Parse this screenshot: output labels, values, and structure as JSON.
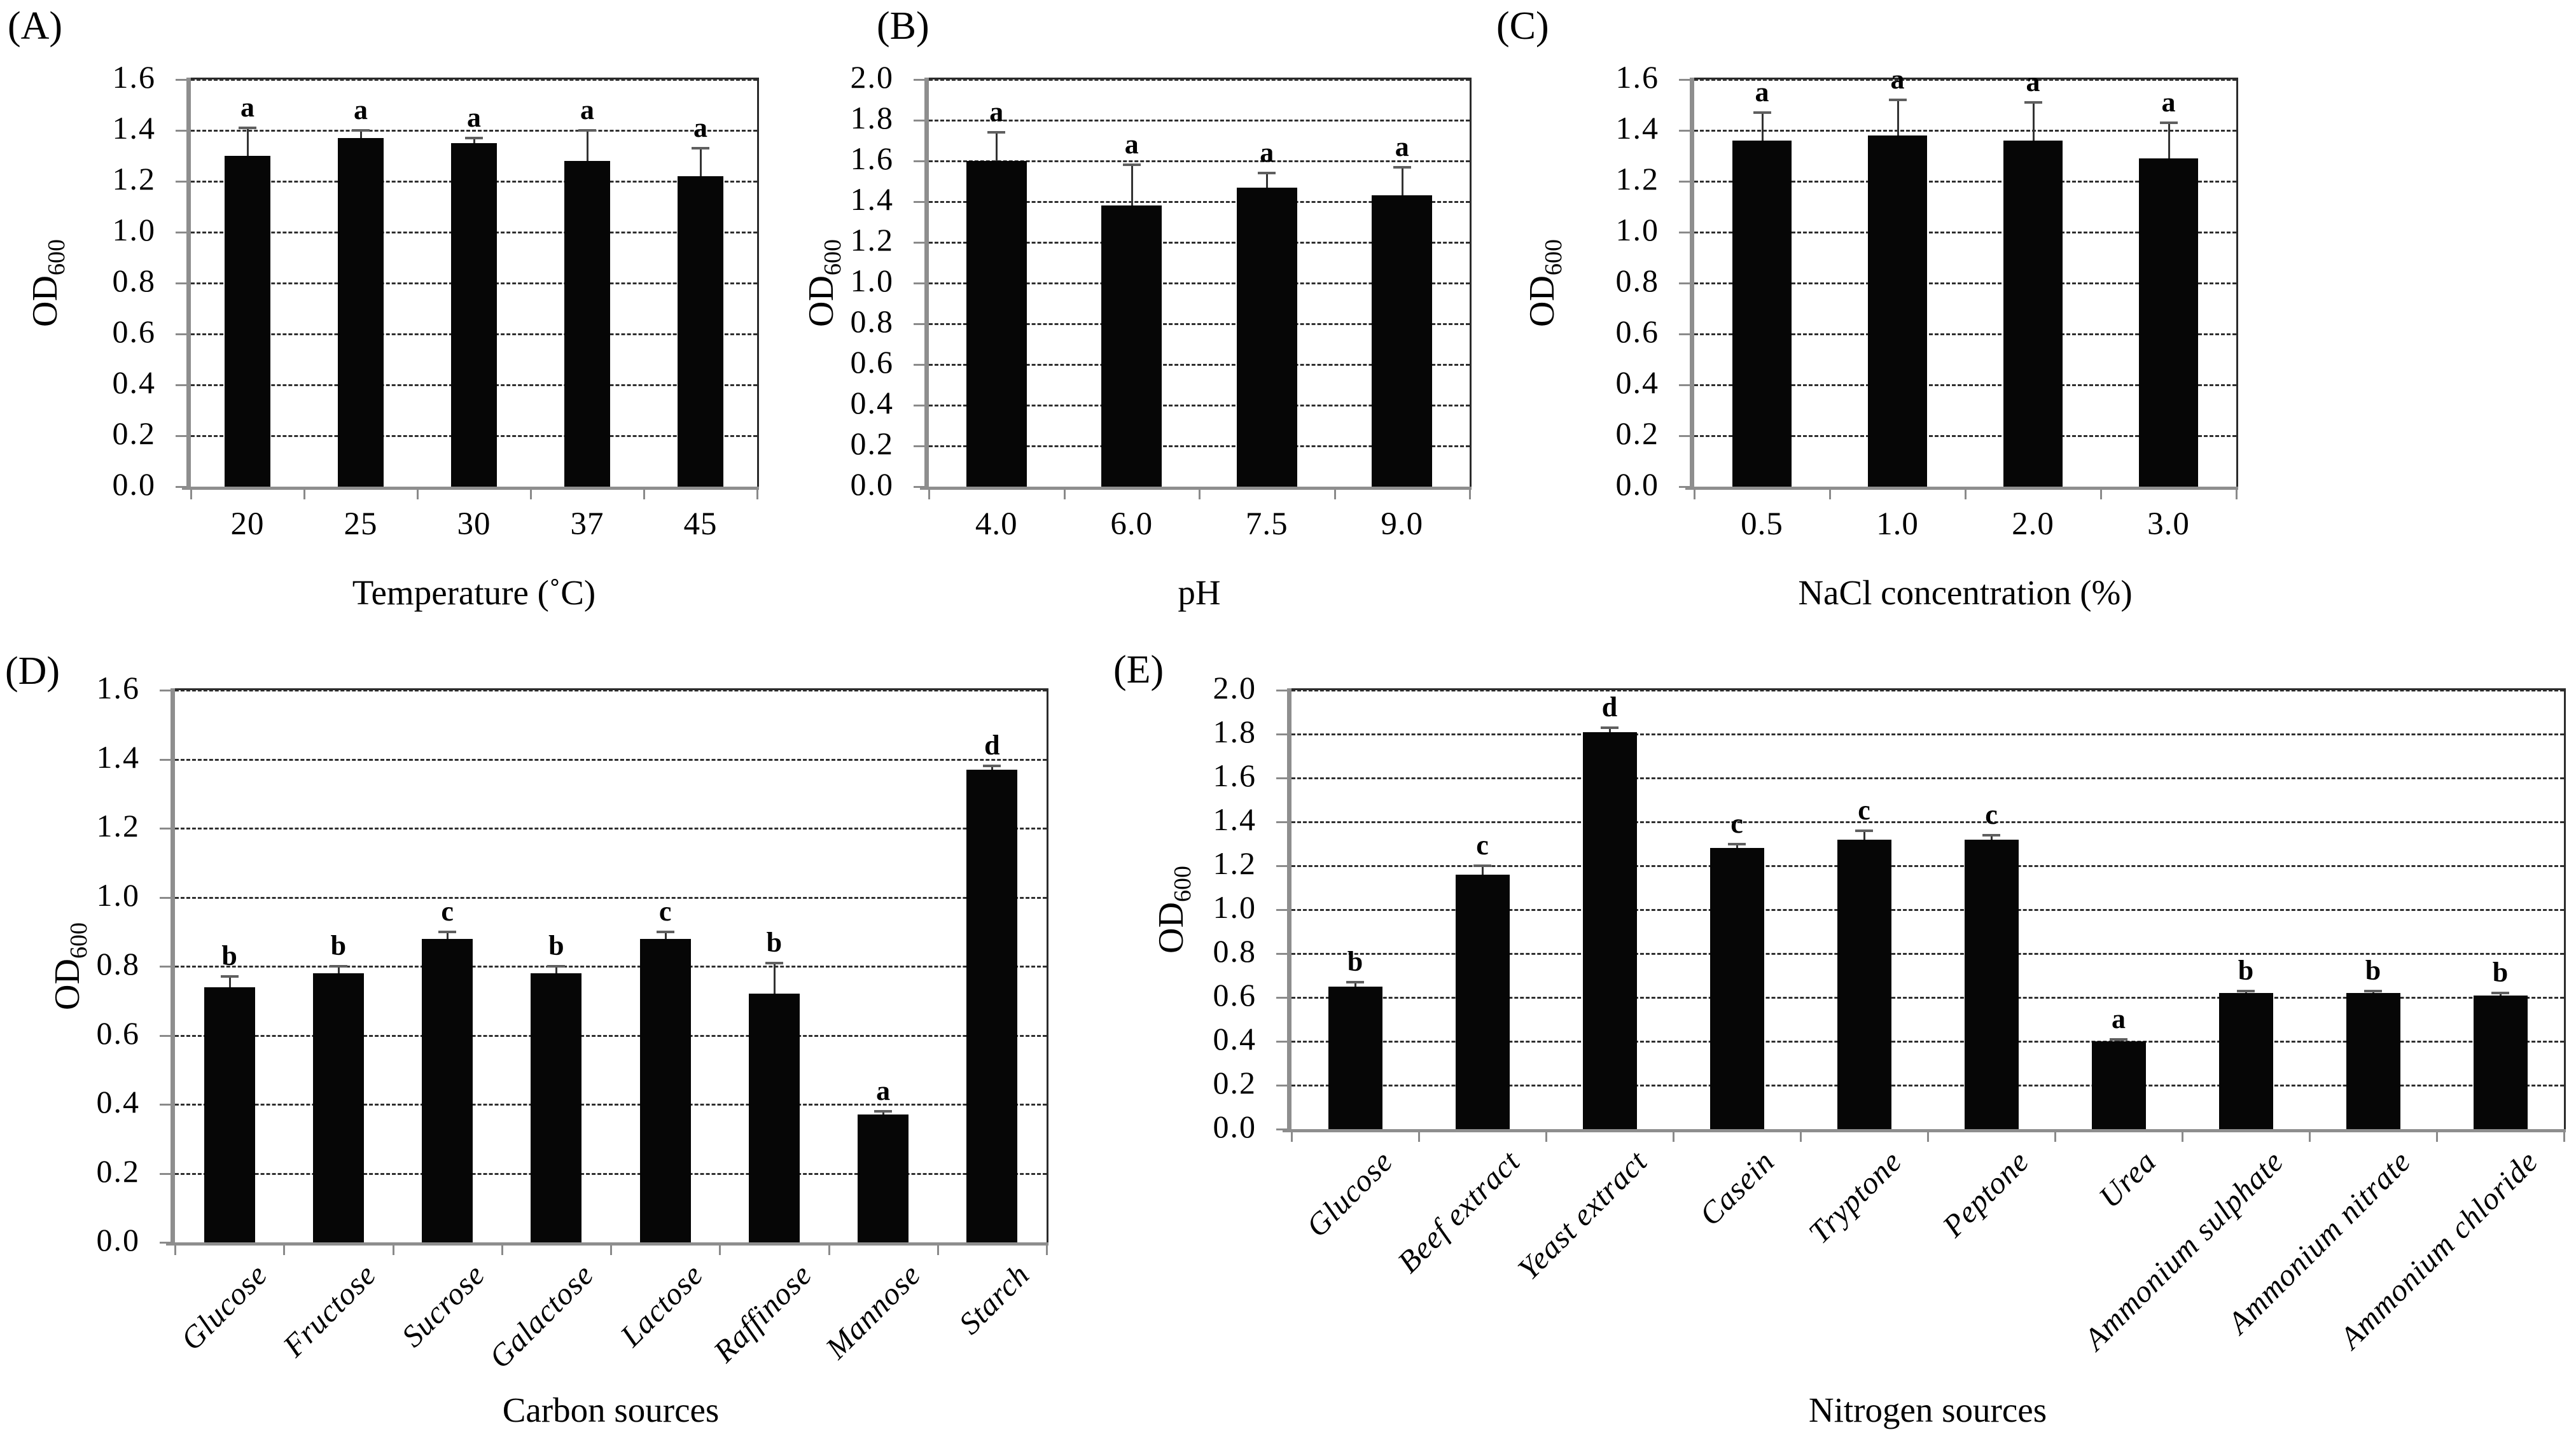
{
  "figure_description": "Five-panel bar chart figure of bacterial growth (OD600) under different culture conditions",
  "chart_data": [
    {
      "panel_label": "(A)",
      "type": "bar",
      "title": "",
      "xlabel": "Temperature (˚C)",
      "ylabel": "OD",
      "ylabel_subscript": "600",
      "ylim": [
        0,
        1.6
      ],
      "ytick_step": 0.2,
      "ytick_labels": [
        "0.0",
        "0.2",
        "0.4",
        "0.6",
        "0.8",
        "1.0",
        "1.2",
        "1.4",
        "1.6"
      ],
      "grid": "horizontal-dashed",
      "legend": "none",
      "bar_color": "#060606",
      "categories": [
        "20",
        "25",
        "30",
        "37",
        "45"
      ],
      "values": [
        1.3,
        1.37,
        1.35,
        1.28,
        1.22
      ],
      "errors_plus": [
        0.11,
        0.03,
        0.02,
        0.12,
        0.11
      ],
      "sig_letters": [
        "a",
        "a",
        "a",
        "a",
        "a"
      ],
      "xtick_rotation": 0
    },
    {
      "panel_label": "(B)",
      "type": "bar",
      "title": "",
      "xlabel": "pH",
      "ylabel": "OD",
      "ylabel_subscript": "600",
      "ylim": [
        0,
        2.0
      ],
      "ytick_step": 0.2,
      "ytick_labels": [
        "0.0",
        "0.2",
        "0.4",
        "0.6",
        "0.8",
        "1.0",
        "1.2",
        "1.4",
        "1.6",
        "1.8",
        "2.0"
      ],
      "grid": "horizontal-dashed",
      "legend": "none",
      "bar_color": "#060606",
      "categories": [
        "4.0",
        "6.0",
        "7.5",
        "9.0"
      ],
      "values": [
        1.6,
        1.38,
        1.47,
        1.43
      ],
      "errors_plus": [
        0.14,
        0.2,
        0.07,
        0.14
      ],
      "sig_letters": [
        "a",
        "a",
        "a",
        "a"
      ],
      "xtick_rotation": 0
    },
    {
      "panel_label": "(C)",
      "type": "bar",
      "title": "",
      "xlabel": "NaCl concentration (%)",
      "ylabel": "OD",
      "ylabel_subscript": "600",
      "ylim": [
        0,
        1.6
      ],
      "ytick_step": 0.2,
      "ytick_labels": [
        "0.0",
        "0.2",
        "0.4",
        "0.6",
        "0.8",
        "1.0",
        "1.2",
        "1.4",
        "1.6"
      ],
      "grid": "horizontal-dashed",
      "legend": "none",
      "bar_color": "#060606",
      "categories": [
        "0.5",
        "1.0",
        "2.0",
        "3.0"
      ],
      "values": [
        1.36,
        1.38,
        1.36,
        1.29
      ],
      "errors_plus": [
        0.11,
        0.14,
        0.15,
        0.14
      ],
      "sig_letters": [
        "a",
        "a",
        "a",
        "a"
      ],
      "xtick_rotation": 0
    },
    {
      "panel_label": "(D)",
      "type": "bar",
      "title": "",
      "xlabel": "Carbon sources",
      "ylabel": "OD",
      "ylabel_subscript": "600",
      "ylim": [
        0,
        1.6
      ],
      "ytick_step": 0.2,
      "ytick_labels": [
        "0.0",
        "0.2",
        "0.4",
        "0.6",
        "0.8",
        "1.0",
        "1.2",
        "1.4",
        "1.6"
      ],
      "grid": "horizontal-dashed",
      "legend": "none",
      "bar_color": "#060606",
      "categories": [
        "Glucose",
        "Fructose",
        "Sucrose",
        "Galactose",
        "Lactose",
        "Raffinose",
        "Mannose",
        "Starch"
      ],
      "values": [
        0.74,
        0.78,
        0.88,
        0.78,
        0.88,
        0.72,
        0.37,
        1.37
      ],
      "errors_plus": [
        0.03,
        0.02,
        0.02,
        0.02,
        0.02,
        0.09,
        0.01,
        0.01
      ],
      "sig_letters": [
        "b",
        "b",
        "c",
        "b",
        "c",
        "b",
        "a",
        "d"
      ],
      "xtick_rotation": 45
    },
    {
      "panel_label": "(E)",
      "type": "bar",
      "title": "",
      "xlabel": "Nitrogen sources",
      "ylabel": "OD",
      "ylabel_subscript": "600",
      "ylim": [
        0,
        2.0
      ],
      "ytick_step": 0.2,
      "ytick_labels": [
        "0.0",
        "0.2",
        "0.4",
        "0.6",
        "0.8",
        "1.0",
        "1.2",
        "1.4",
        "1.6",
        "1.8",
        "2.0"
      ],
      "grid": "horizontal-dashed",
      "legend": "none",
      "bar_color": "#060606",
      "categories": [
        "Glucose",
        "Beef extract",
        "Yeast extract",
        "Casein",
        "Tryptone",
        "Peptone",
        "Urea",
        "Ammonium sulphate",
        "Ammonium nitrate",
        "Ammonium chloride"
      ],
      "values": [
        0.65,
        1.16,
        1.81,
        1.28,
        1.32,
        1.32,
        0.4,
        0.62,
        0.62,
        0.61
      ],
      "errors_plus": [
        0.02,
        0.04,
        0.02,
        0.02,
        0.04,
        0.02,
        0.01,
        0.01,
        0.01,
        0.01
      ],
      "sig_letters": [
        "b",
        "c",
        "d",
        "c",
        "c",
        "c",
        "a",
        "b",
        "b",
        "b"
      ],
      "xtick_rotation": 45
    }
  ]
}
